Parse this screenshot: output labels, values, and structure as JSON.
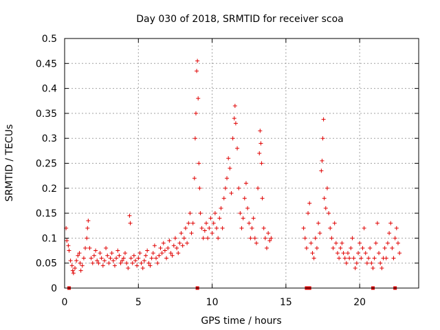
{
  "chart_data": {
    "type": "scatter",
    "title": "Day 030 of 2018, SRMTID for receiver scoa",
    "xlabel": "GPS time / hours",
    "ylabel": "SRMTID / TECUs",
    "xlim": [
      0,
      24
    ],
    "ylim": [
      0,
      0.5
    ],
    "x_ticks": [
      0,
      5,
      10,
      15,
      20
    ],
    "x_tick_labels": [
      "0",
      "5",
      "10",
      "15",
      "20"
    ],
    "y_ticks": [
      0,
      0.05,
      0.1,
      0.15,
      0.2,
      0.25,
      0.3,
      0.35,
      0.4,
      0.45,
      0.5
    ],
    "y_tick_labels": [
      "0",
      "0.05",
      "0.1",
      "0.15",
      "0.2",
      "0.25",
      "0.3",
      "0.35",
      "0.4",
      "0.45",
      "0.5"
    ],
    "grid": true,
    "marker": "+",
    "series_color": "#e00000",
    "series": [
      {
        "name": "SRMTID",
        "points": [
          [
            0.1,
            0.12
          ],
          [
            0.15,
            0.095
          ],
          [
            0.25,
            0.085
          ],
          [
            0.3,
            0.075
          ],
          [
            0.4,
            0.055
          ],
          [
            0.5,
            0.045
          ],
          [
            0.55,
            0.035
          ],
          [
            0.6,
            0.03
          ],
          [
            0.7,
            0.04
          ],
          [
            0.8,
            0.055
          ],
          [
            0.9,
            0.065
          ],
          [
            1.0,
            0.07
          ],
          [
            1.05,
            0.05
          ],
          [
            1.1,
            0.035
          ],
          [
            1.2,
            0.045
          ],
          [
            1.3,
            0.06
          ],
          [
            1.4,
            0.08
          ],
          [
            1.5,
            0.1
          ],
          [
            1.55,
            0.12
          ],
          [
            1.6,
            0.135
          ],
          [
            1.7,
            0.08
          ],
          [
            1.8,
            0.06
          ],
          [
            1.9,
            0.05
          ],
          [
            2.0,
            0.065
          ],
          [
            2.1,
            0.075
          ],
          [
            2.2,
            0.055
          ],
          [
            2.3,
            0.05
          ],
          [
            2.4,
            0.07
          ],
          [
            2.5,
            0.06
          ],
          [
            2.6,
            0.045
          ],
          [
            2.7,
            0.055
          ],
          [
            2.8,
            0.08
          ],
          [
            2.9,
            0.065
          ],
          [
            3.0,
            0.05
          ],
          [
            3.1,
            0.06
          ],
          [
            3.2,
            0.07
          ],
          [
            3.3,
            0.055
          ],
          [
            3.4,
            0.045
          ],
          [
            3.5,
            0.06
          ],
          [
            3.6,
            0.075
          ],
          [
            3.7,
            0.065
          ],
          [
            3.8,
            0.05
          ],
          [
            3.9,
            0.055
          ],
          [
            4.0,
            0.06
          ],
          [
            4.1,
            0.07
          ],
          [
            4.2,
            0.05
          ],
          [
            4.3,
            0.04
          ],
          [
            4.4,
            0.145
          ],
          [
            4.45,
            0.13
          ],
          [
            4.5,
            0.06
          ],
          [
            4.6,
            0.05
          ],
          [
            4.7,
            0.065
          ],
          [
            4.8,
            0.055
          ],
          [
            4.9,
            0.045
          ],
          [
            5.0,
            0.06
          ],
          [
            5.1,
            0.07
          ],
          [
            5.2,
            0.05
          ],
          [
            5.3,
            0.04
          ],
          [
            5.4,
            0.055
          ],
          [
            5.5,
            0.065
          ],
          [
            5.6,
            0.075
          ],
          [
            5.7,
            0.05
          ],
          [
            5.8,
            0.045
          ],
          [
            5.9,
            0.06
          ],
          [
            6.0,
            0.07
          ],
          [
            6.1,
            0.085
          ],
          [
            6.2,
            0.06
          ],
          [
            6.3,
            0.05
          ],
          [
            6.4,
            0.065
          ],
          [
            6.5,
            0.08
          ],
          [
            6.6,
            0.07
          ],
          [
            6.7,
            0.09
          ],
          [
            6.8,
            0.075
          ],
          [
            6.9,
            0.06
          ],
          [
            7.0,
            0.08
          ],
          [
            7.1,
            0.095
          ],
          [
            7.2,
            0.07
          ],
          [
            7.3,
            0.065
          ],
          [
            7.4,
            0.085
          ],
          [
            7.5,
            0.1
          ],
          [
            7.6,
            0.08
          ],
          [
            7.7,
            0.07
          ],
          [
            7.8,
            0.09
          ],
          [
            7.9,
            0.11
          ],
          [
            8.0,
            0.085
          ],
          [
            8.1,
            0.1
          ],
          [
            8.2,
            0.12
          ],
          [
            8.3,
            0.09
          ],
          [
            8.4,
            0.13
          ],
          [
            8.5,
            0.15
          ],
          [
            8.6,
            0.11
          ],
          [
            8.7,
            0.13
          ],
          [
            8.8,
            0.22
          ],
          [
            8.85,
            0.3
          ],
          [
            8.9,
            0.35
          ],
          [
            8.95,
            0.435
          ],
          [
            9.0,
            0.455
          ],
          [
            9.05,
            0.38
          ],
          [
            9.1,
            0.25
          ],
          [
            9.15,
            0.2
          ],
          [
            9.2,
            0.15
          ],
          [
            9.3,
            0.12
          ],
          [
            9.4,
            0.1
          ],
          [
            9.5,
            0.115
          ],
          [
            9.6,
            0.13
          ],
          [
            9.7,
            0.1
          ],
          [
            9.8,
            0.12
          ],
          [
            9.9,
            0.14
          ],
          [
            10.0,
            0.11
          ],
          [
            10.1,
            0.13
          ],
          [
            10.2,
            0.15
          ],
          [
            10.3,
            0.12
          ],
          [
            10.4,
            0.1
          ],
          [
            10.5,
            0.14
          ],
          [
            10.6,
            0.16
          ],
          [
            10.7,
            0.12
          ],
          [
            10.8,
            0.18
          ],
          [
            10.9,
            0.2
          ],
          [
            11.0,
            0.22
          ],
          [
            11.1,
            0.26
          ],
          [
            11.2,
            0.24
          ],
          [
            11.3,
            0.19
          ],
          [
            11.4,
            0.3
          ],
          [
            11.5,
            0.34
          ],
          [
            11.55,
            0.365
          ],
          [
            11.6,
            0.33
          ],
          [
            11.7,
            0.28
          ],
          [
            11.8,
            0.2
          ],
          [
            11.9,
            0.15
          ],
          [
            12.0,
            0.12
          ],
          [
            12.1,
            0.14
          ],
          [
            12.2,
            0.18
          ],
          [
            12.3,
            0.21
          ],
          [
            12.4,
            0.16
          ],
          [
            12.5,
            0.13
          ],
          [
            12.6,
            0.1
          ],
          [
            12.7,
            0.12
          ],
          [
            12.8,
            0.14
          ],
          [
            12.9,
            0.1
          ],
          [
            13.0,
            0.09
          ],
          [
            13.1,
            0.2
          ],
          [
            13.2,
            0.27
          ],
          [
            13.25,
            0.315
          ],
          [
            13.3,
            0.29
          ],
          [
            13.35,
            0.25
          ],
          [
            13.4,
            0.18
          ],
          [
            13.5,
            0.12
          ],
          [
            13.6,
            0.1
          ],
          [
            13.7,
            0.08
          ],
          [
            13.8,
            0.11
          ],
          [
            13.9,
            0.095
          ],
          [
            14.0,
            0.1
          ],
          [
            16.2,
            0.12
          ],
          [
            16.3,
            0.1
          ],
          [
            16.4,
            0.08
          ],
          [
            16.5,
            0.15
          ],
          [
            16.6,
            0.17
          ],
          [
            16.7,
            0.09
          ],
          [
            16.8,
            0.07
          ],
          [
            16.9,
            0.06
          ],
          [
            17.0,
            0.1
          ],
          [
            17.1,
            0.08
          ],
          [
            17.2,
            0.13
          ],
          [
            17.3,
            0.11
          ],
          [
            17.4,
            0.235
          ],
          [
            17.45,
            0.255
          ],
          [
            17.5,
            0.3
          ],
          [
            17.55,
            0.338
          ],
          [
            17.6,
            0.18
          ],
          [
            17.7,
            0.16
          ],
          [
            17.8,
            0.2
          ],
          [
            17.9,
            0.15
          ],
          [
            18.0,
            0.12
          ],
          [
            18.1,
            0.1
          ],
          [
            18.2,
            0.08
          ],
          [
            18.3,
            0.13
          ],
          [
            18.4,
            0.09
          ],
          [
            18.5,
            0.07
          ],
          [
            18.6,
            0.06
          ],
          [
            18.7,
            0.08
          ],
          [
            18.8,
            0.09
          ],
          [
            18.9,
            0.07
          ],
          [
            19.0,
            0.06
          ],
          [
            19.1,
            0.05
          ],
          [
            19.2,
            0.07
          ],
          [
            19.3,
            0.06
          ],
          [
            19.4,
            0.08
          ],
          [
            19.5,
            0.1
          ],
          [
            19.6,
            0.06
          ],
          [
            19.7,
            0.04
          ],
          [
            19.8,
            0.05
          ],
          [
            19.9,
            0.07
          ],
          [
            20.0,
            0.09
          ],
          [
            20.1,
            0.06
          ],
          [
            20.2,
            0.08
          ],
          [
            20.3,
            0.12
          ],
          [
            20.4,
            0.07
          ],
          [
            20.5,
            0.05
          ],
          [
            20.6,
            0.06
          ],
          [
            20.7,
            0.08
          ],
          [
            20.8,
            0.05
          ],
          [
            20.9,
            0.04
          ],
          [
            21.0,
            0.06
          ],
          [
            21.1,
            0.09
          ],
          [
            21.2,
            0.13
          ],
          [
            21.3,
            0.07
          ],
          [
            21.4,
            0.05
          ],
          [
            21.5,
            0.04
          ],
          [
            21.6,
            0.06
          ],
          [
            21.7,
            0.08
          ],
          [
            21.8,
            0.06
          ],
          [
            21.9,
            0.09
          ],
          [
            22.0,
            0.11
          ],
          [
            22.1,
            0.13
          ],
          [
            22.2,
            0.08
          ],
          [
            22.3,
            0.06
          ],
          [
            22.4,
            0.1
          ],
          [
            22.5,
            0.12
          ],
          [
            22.6,
            0.09
          ],
          [
            22.7,
            0.07
          ]
        ]
      }
    ],
    "gap_markers_x": [
      0.3,
      9.0,
      16.4,
      16.6,
      20.9,
      22.4
    ]
  }
}
